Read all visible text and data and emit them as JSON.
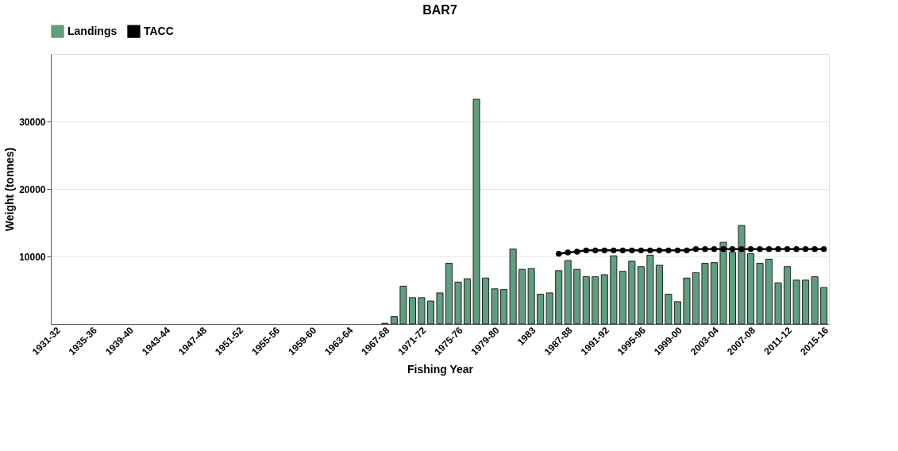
{
  "chart_data": {
    "type": "bar",
    "title": "BAR7",
    "xlabel": "Fishing Year",
    "ylabel": "Weight (tonnes)",
    "categories": [
      "1931-32",
      null,
      null,
      null,
      "1935-36",
      null,
      null,
      null,
      "1939-40",
      null,
      null,
      null,
      "1943-44",
      null,
      null,
      null,
      "1947-48",
      null,
      null,
      null,
      "1951-52",
      null,
      null,
      null,
      "1955-56",
      null,
      null,
      null,
      "1959-60",
      null,
      null,
      null,
      "1963-64",
      null,
      null,
      null,
      "1967-68",
      null,
      null,
      null,
      "1971-72",
      null,
      null,
      null,
      "1975-76",
      null,
      null,
      null,
      "1979-80",
      null,
      null,
      null,
      "1983",
      null,
      null,
      null,
      "1987-88",
      null,
      null,
      null,
      "1991-92",
      null,
      null,
      null,
      "1995-96",
      null,
      null,
      null,
      "1999-00",
      null,
      null,
      null,
      "2003-04",
      null,
      null,
      null,
      "2007-08",
      null,
      null,
      null,
      "2011-12",
      null,
      null,
      null,
      "2015-16"
    ],
    "series": [
      {
        "name": "Landings",
        "color": "#5f9e7e",
        "values": [
          null,
          null,
          null,
          null,
          null,
          null,
          null,
          null,
          null,
          null,
          null,
          null,
          null,
          null,
          null,
          null,
          null,
          null,
          null,
          null,
          null,
          null,
          null,
          null,
          null,
          null,
          null,
          null,
          null,
          null,
          null,
          null,
          null,
          null,
          null,
          null,
          100,
          1100,
          5600,
          3900,
          3900,
          3400,
          4600,
          9000,
          6200,
          6700,
          33300,
          6800,
          5200,
          5100,
          11100,
          8100,
          8200,
          4400,
          4600,
          7900,
          9400,
          8100,
          7000,
          7000,
          7300,
          10100,
          7800,
          9300,
          8500,
          10200,
          8700,
          4400,
          3300,
          6800,
          7600,
          9000,
          9100,
          12100,
          10600,
          14600,
          10400,
          9000,
          9600,
          6100,
          8500,
          6500,
          6500,
          7000,
          5400
        ]
      },
      {
        "name": "TACC",
        "type": "line",
        "color": "#000000",
        "marker": "circle",
        "line_style": "solid",
        "values": [
          null,
          null,
          null,
          null,
          null,
          null,
          null,
          null,
          null,
          null,
          null,
          null,
          null,
          null,
          null,
          null,
          null,
          null,
          null,
          null,
          null,
          null,
          null,
          null,
          null,
          null,
          null,
          null,
          null,
          null,
          null,
          null,
          null,
          null,
          null,
          null,
          null,
          null,
          null,
          null,
          null,
          null,
          null,
          null,
          null,
          null,
          null,
          null,
          null,
          null,
          null,
          null,
          null,
          null,
          null,
          10400,
          10600,
          10700,
          10900,
          10900,
          10900,
          10900,
          10900,
          10900,
          10900,
          10900,
          10900,
          10900,
          10900,
          10900,
          11100,
          11100,
          11100,
          11100,
          11100,
          11100,
          11100,
          11100,
          11100,
          11100,
          11100,
          11100,
          11100,
          11100,
          11100
        ]
      }
    ],
    "ylim": [
      0,
      40000
    ],
    "yticks": [
      10000,
      20000,
      30000
    ],
    "grid": "y",
    "legend": "top"
  }
}
